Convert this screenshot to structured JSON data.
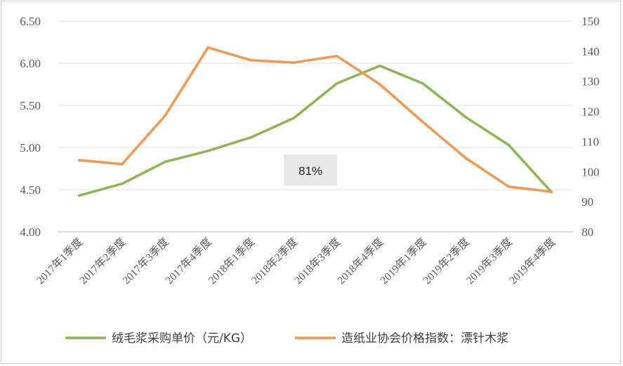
{
  "chart_data": {
    "type": "line",
    "categories": [
      "2017年1季度",
      "2017年2季度",
      "2017年3季度",
      "2017年4季度",
      "2018年1季度",
      "2018年2季度",
      "2018年3季度",
      "2018年4季度",
      "2019年1季度",
      "2019年2季度",
      "2019年3季度",
      "2019年4季度"
    ],
    "series": [
      {
        "name": "绒毛浆采购单价（元/KG）",
        "axis": "left",
        "color": "#8DB653",
        "values": [
          4.43,
          4.57,
          4.83,
          4.96,
          5.12,
          5.35,
          5.76,
          5.97,
          5.76,
          5.36,
          5.03,
          4.47
        ]
      },
      {
        "name": "造纸业协会价格指数：漂针木浆",
        "axis": "right",
        "color": "#F4974F",
        "values": [
          103.8,
          102.5,
          118.5,
          141.2,
          137.0,
          136.2,
          138.4,
          129.0,
          116.5,
          104.5,
          95.0,
          93.3
        ]
      }
    ],
    "ylim_left": [
      4.0,
      6.5
    ],
    "yticks_left": [
      "4.00",
      "4.50",
      "5.00",
      "5.50",
      "6.00",
      "6.50"
    ],
    "ylim_right": [
      80,
      150
    ],
    "yticks_right": [
      "80",
      "90",
      "100",
      "110",
      "120",
      "130",
      "140",
      "150"
    ],
    "grid": true,
    "legend": "bottom",
    "annotation": "81%"
  }
}
